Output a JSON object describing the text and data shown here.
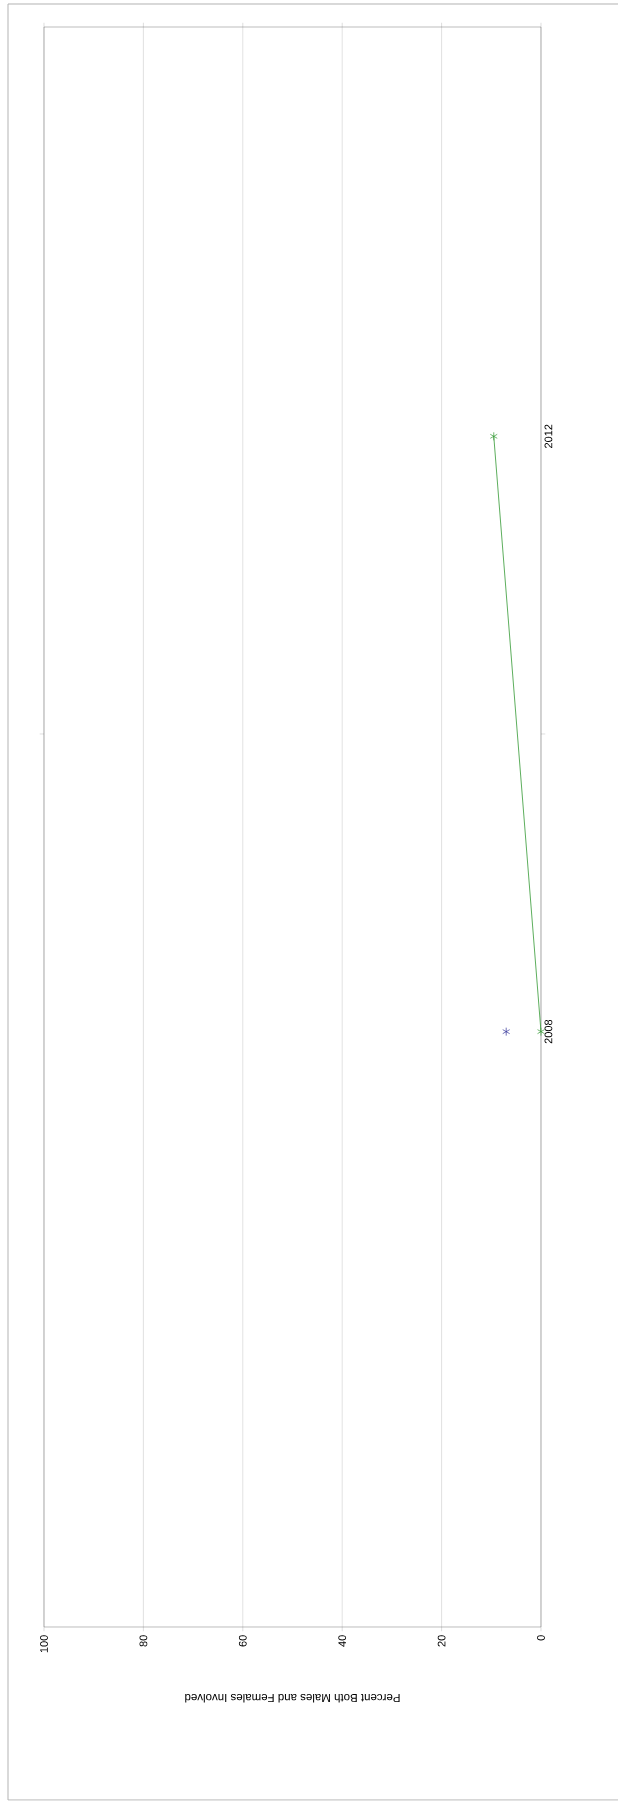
{
  "chart_data": {
    "type": "line",
    "orientation": "horizontal",
    "xlabel": "Percent Both Males and Females Involved",
    "x": [
      2008,
      2012
    ],
    "series": [
      {
        "color": "#333399",
        "values": [
          7,
          null
        ]
      },
      {
        "color": "#339933",
        "values": [
          0,
          9.5
        ]
      }
    ],
    "xlim": [
      100,
      0
    ],
    "xticks": [
      0,
      20,
      40,
      60,
      80,
      100
    ],
    "ylim": [
      2004,
      2014.75
    ],
    "yticks": [
      2008,
      {
        "value": 2010,
        "label": null
      },
      2012
    ],
    "grid": "x",
    "marker": "cross",
    "line_style": "solid"
  }
}
